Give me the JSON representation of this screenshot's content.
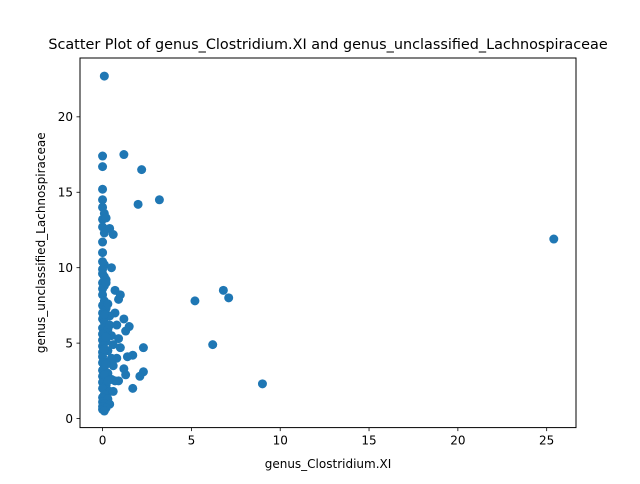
{
  "chart_data": {
    "type": "scatter",
    "title": "Scatter Plot of genus_Clostridium.XI and genus_unclassified_Lachnospiraceae",
    "xlabel": "genus_Clostridium.XI",
    "ylabel": "genus_unclassified_Lachnospiraceae",
    "xlim": [
      -1.27,
      26.65
    ],
    "ylim": [
      -0.6,
      23.9
    ],
    "xticks": [
      0,
      5,
      10,
      15,
      20,
      25
    ],
    "xtick_labels": [
      "0",
      "5",
      "10",
      "15",
      "20",
      "25"
    ],
    "yticks": [
      0,
      5,
      10,
      15,
      20
    ],
    "ytick_labels": [
      "0",
      "5",
      "10",
      "15",
      "20"
    ],
    "grid": false,
    "marker_color": "#1f77b4",
    "points": [
      {
        "x": 0.1,
        "y": 22.7
      },
      {
        "x": 0.0,
        "y": 17.4
      },
      {
        "x": 1.2,
        "y": 17.5
      },
      {
        "x": 0.0,
        "y": 16.7
      },
      {
        "x": 2.2,
        "y": 16.5
      },
      {
        "x": 0.0,
        "y": 15.2
      },
      {
        "x": 0.0,
        "y": 14.5
      },
      {
        "x": 3.2,
        "y": 14.5
      },
      {
        "x": 2.0,
        "y": 14.2
      },
      {
        "x": 0.0,
        "y": 14.0
      },
      {
        "x": 0.1,
        "y": 13.6
      },
      {
        "x": 0.0,
        "y": 13.2
      },
      {
        "x": 0.2,
        "y": 13.3
      },
      {
        "x": 0.0,
        "y": 12.7
      },
      {
        "x": 0.4,
        "y": 12.6
      },
      {
        "x": 0.1,
        "y": 12.3
      },
      {
        "x": 0.6,
        "y": 12.2
      },
      {
        "x": 0.0,
        "y": 11.7
      },
      {
        "x": 0.0,
        "y": 11.0
      },
      {
        "x": 25.4,
        "y": 11.9
      },
      {
        "x": 0.0,
        "y": 10.4
      },
      {
        "x": 0.1,
        "y": 10.2
      },
      {
        "x": 0.5,
        "y": 10.0
      },
      {
        "x": 0.0,
        "y": 9.6
      },
      {
        "x": 0.1,
        "y": 9.4
      },
      {
        "x": 0.2,
        "y": 9.2
      },
      {
        "x": 0.0,
        "y": 9.0
      },
      {
        "x": 0.1,
        "y": 8.8
      },
      {
        "x": 0.0,
        "y": 8.6
      },
      {
        "x": 0.7,
        "y": 8.5
      },
      {
        "x": 6.8,
        "y": 8.5
      },
      {
        "x": 1.0,
        "y": 8.2
      },
      {
        "x": 0.0,
        "y": 8.2
      },
      {
        "x": 0.9,
        "y": 7.9
      },
      {
        "x": 7.1,
        "y": 8.0
      },
      {
        "x": 5.2,
        "y": 7.8
      },
      {
        "x": 0.1,
        "y": 7.8
      },
      {
        "x": 0.0,
        "y": 7.5
      },
      {
        "x": 0.2,
        "y": 7.3
      },
      {
        "x": 0.7,
        "y": 7.0
      },
      {
        "x": 0.0,
        "y": 7.0
      },
      {
        "x": 0.4,
        "y": 6.8
      },
      {
        "x": 1.2,
        "y": 6.6
      },
      {
        "x": 0.0,
        "y": 6.6
      },
      {
        "x": 0.1,
        "y": 6.4
      },
      {
        "x": 0.8,
        "y": 6.2
      },
      {
        "x": 1.5,
        "y": 6.1
      },
      {
        "x": 0.0,
        "y": 6.0
      },
      {
        "x": 0.3,
        "y": 5.9
      },
      {
        "x": 1.3,
        "y": 5.8
      },
      {
        "x": 0.0,
        "y": 5.6
      },
      {
        "x": 0.5,
        "y": 5.5
      },
      {
        "x": 0.9,
        "y": 5.3
      },
      {
        "x": 0.0,
        "y": 5.2
      },
      {
        "x": 0.2,
        "y": 5.1
      },
      {
        "x": 0.6,
        "y": 4.9
      },
      {
        "x": 6.2,
        "y": 4.9
      },
      {
        "x": 0.0,
        "y": 4.8
      },
      {
        "x": 1.0,
        "y": 4.7
      },
      {
        "x": 2.3,
        "y": 4.7
      },
      {
        "x": 0.3,
        "y": 4.5
      },
      {
        "x": 0.0,
        "y": 4.4
      },
      {
        "x": 1.7,
        "y": 4.2
      },
      {
        "x": 1.4,
        "y": 4.1
      },
      {
        "x": 0.0,
        "y": 4.1
      },
      {
        "x": 0.8,
        "y": 4.0
      },
      {
        "x": 0.4,
        "y": 3.8
      },
      {
        "x": 0.0,
        "y": 3.7
      },
      {
        "x": 0.6,
        "y": 3.5
      },
      {
        "x": 0.1,
        "y": 3.4
      },
      {
        "x": 1.2,
        "y": 3.3
      },
      {
        "x": 0.0,
        "y": 3.2
      },
      {
        "x": 2.3,
        "y": 3.1
      },
      {
        "x": 0.3,
        "y": 3.0
      },
      {
        "x": 1.3,
        "y": 2.9
      },
      {
        "x": 2.1,
        "y": 2.8
      },
      {
        "x": 0.0,
        "y": 2.8
      },
      {
        "x": 0.5,
        "y": 2.6
      },
      {
        "x": 0.9,
        "y": 2.5
      },
      {
        "x": 0.7,
        "y": 2.5
      },
      {
        "x": 9.0,
        "y": 2.3
      },
      {
        "x": 0.0,
        "y": 2.4
      },
      {
        "x": 0.2,
        "y": 2.2
      },
      {
        "x": 1.7,
        "y": 2.0
      },
      {
        "x": 0.0,
        "y": 2.0
      },
      {
        "x": 0.4,
        "y": 1.8
      },
      {
        "x": 0.1,
        "y": 1.6
      },
      {
        "x": 0.0,
        "y": 1.4
      },
      {
        "x": 0.3,
        "y": 1.3
      },
      {
        "x": 0.0,
        "y": 1.1
      },
      {
        "x": 0.1,
        "y": 1.0
      },
      {
        "x": 0.4,
        "y": 0.95
      },
      {
        "x": 0.0,
        "y": 0.8
      },
      {
        "x": 0.2,
        "y": 0.7
      },
      {
        "x": 0.0,
        "y": 0.6
      },
      {
        "x": 0.1,
        "y": 0.5
      },
      {
        "x": 0.0,
        "y": 9.9
      },
      {
        "x": 0.2,
        "y": 9.0
      },
      {
        "x": 0.3,
        "y": 7.6
      },
      {
        "x": 0.1,
        "y": 6.9
      },
      {
        "x": 0.4,
        "y": 6.2
      },
      {
        "x": 0.2,
        "y": 5.4
      },
      {
        "x": 0.1,
        "y": 4.6
      },
      {
        "x": 0.5,
        "y": 4.0
      },
      {
        "x": 0.2,
        "y": 3.6
      },
      {
        "x": 0.1,
        "y": 2.9
      },
      {
        "x": 0.3,
        "y": 2.5
      },
      {
        "x": 0.6,
        "y": 1.8
      }
    ]
  }
}
